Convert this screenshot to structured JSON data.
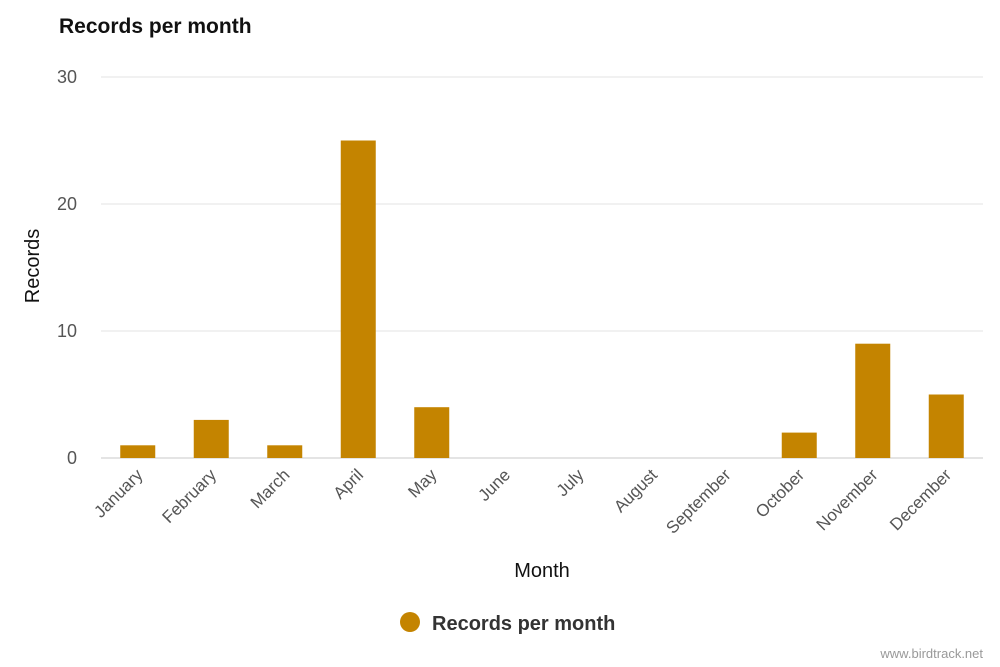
{
  "chart_data": {
    "type": "bar",
    "title": "Records per month",
    "xlabel": "Month",
    "ylabel": "Records",
    "ylim": [
      0,
      30
    ],
    "yticks": [
      0,
      10,
      20,
      30
    ],
    "grid": true,
    "legend_position": "bottom-center",
    "categories": [
      "January",
      "February",
      "March",
      "April",
      "May",
      "June",
      "July",
      "August",
      "September",
      "October",
      "November",
      "December"
    ],
    "series": [
      {
        "name": "Records per month",
        "color": "#c48400",
        "values": [
          1,
          3,
          1,
          25,
          4,
          0,
          0,
          0,
          0,
          2,
          9,
          5
        ]
      }
    ]
  },
  "credit": "www.birdtrack.net"
}
